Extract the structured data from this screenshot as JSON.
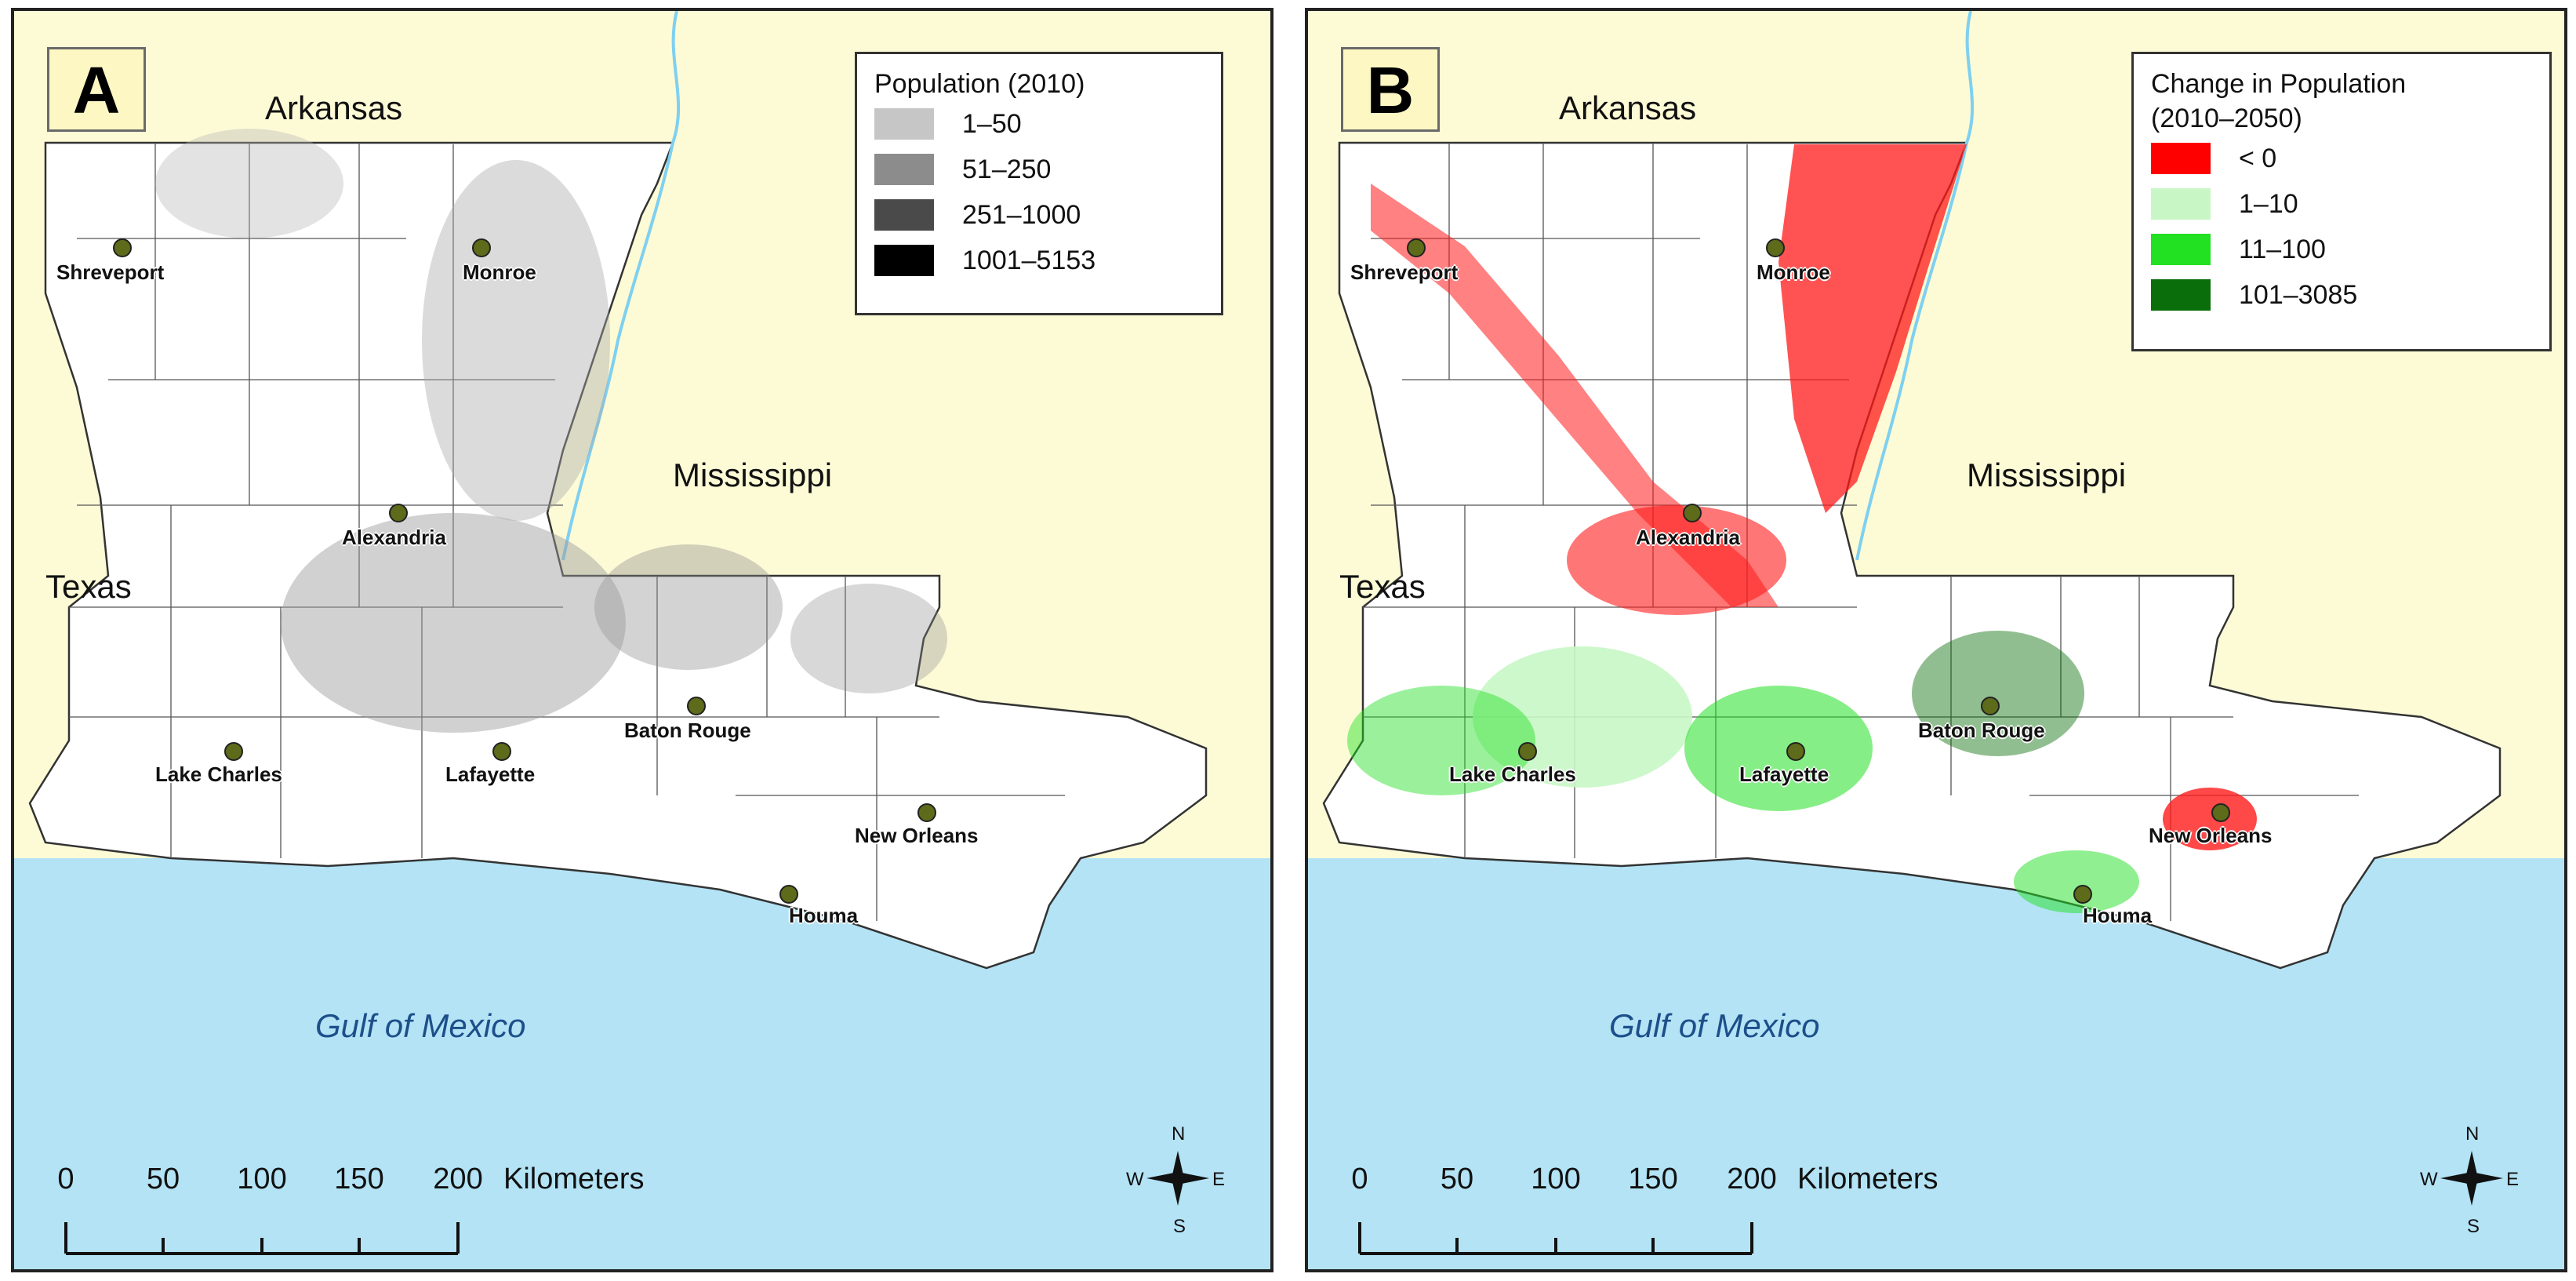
{
  "panels": [
    {
      "letter": "A",
      "legend": {
        "title": "Population (2010)",
        "items": [
          {
            "label": "1–50",
            "color": "#c6c6c6"
          },
          {
            "label": "51–250",
            "color": "#8c8c8c"
          },
          {
            "label": "251–1000",
            "color": "#4a4a4a"
          },
          {
            "label": "1001–5153",
            "color": "#000000"
          }
        ]
      }
    },
    {
      "letter": "B",
      "legend": {
        "title": "Change in Population (2010–2050)",
        "items": [
          {
            "label": "< 0",
            "color": "#ff0000"
          },
          {
            "label": "1–10",
            "color": "#c8f7c5"
          },
          {
            "label": "11–100",
            "color": "#22e022"
          },
          {
            "label": "101–3085",
            "color": "#0a6e0a"
          }
        ]
      }
    }
  ],
  "states": {
    "arkansas": "Arkansas",
    "mississippi": "Mississippi",
    "texas": "Texas"
  },
  "water_label": "Gulf of Mexico",
  "cities": [
    "Shreveport",
    "Monroe",
    "Alexandria",
    "Baton Rouge",
    "Lake Charles",
    "Lafayette",
    "New Orleans",
    "Houma"
  ],
  "scalebar": {
    "ticks": [
      "0",
      "50",
      "100",
      "150",
      "200"
    ],
    "unit": "Kilometers"
  },
  "compass": {
    "n": "N",
    "s": "S",
    "e": "E",
    "w": "W"
  },
  "colors": {
    "land": "#ffffff",
    "neighbor": "#fdfbd6",
    "water": "#b3e3f5",
    "city_dot": "#5d6b1a"
  }
}
